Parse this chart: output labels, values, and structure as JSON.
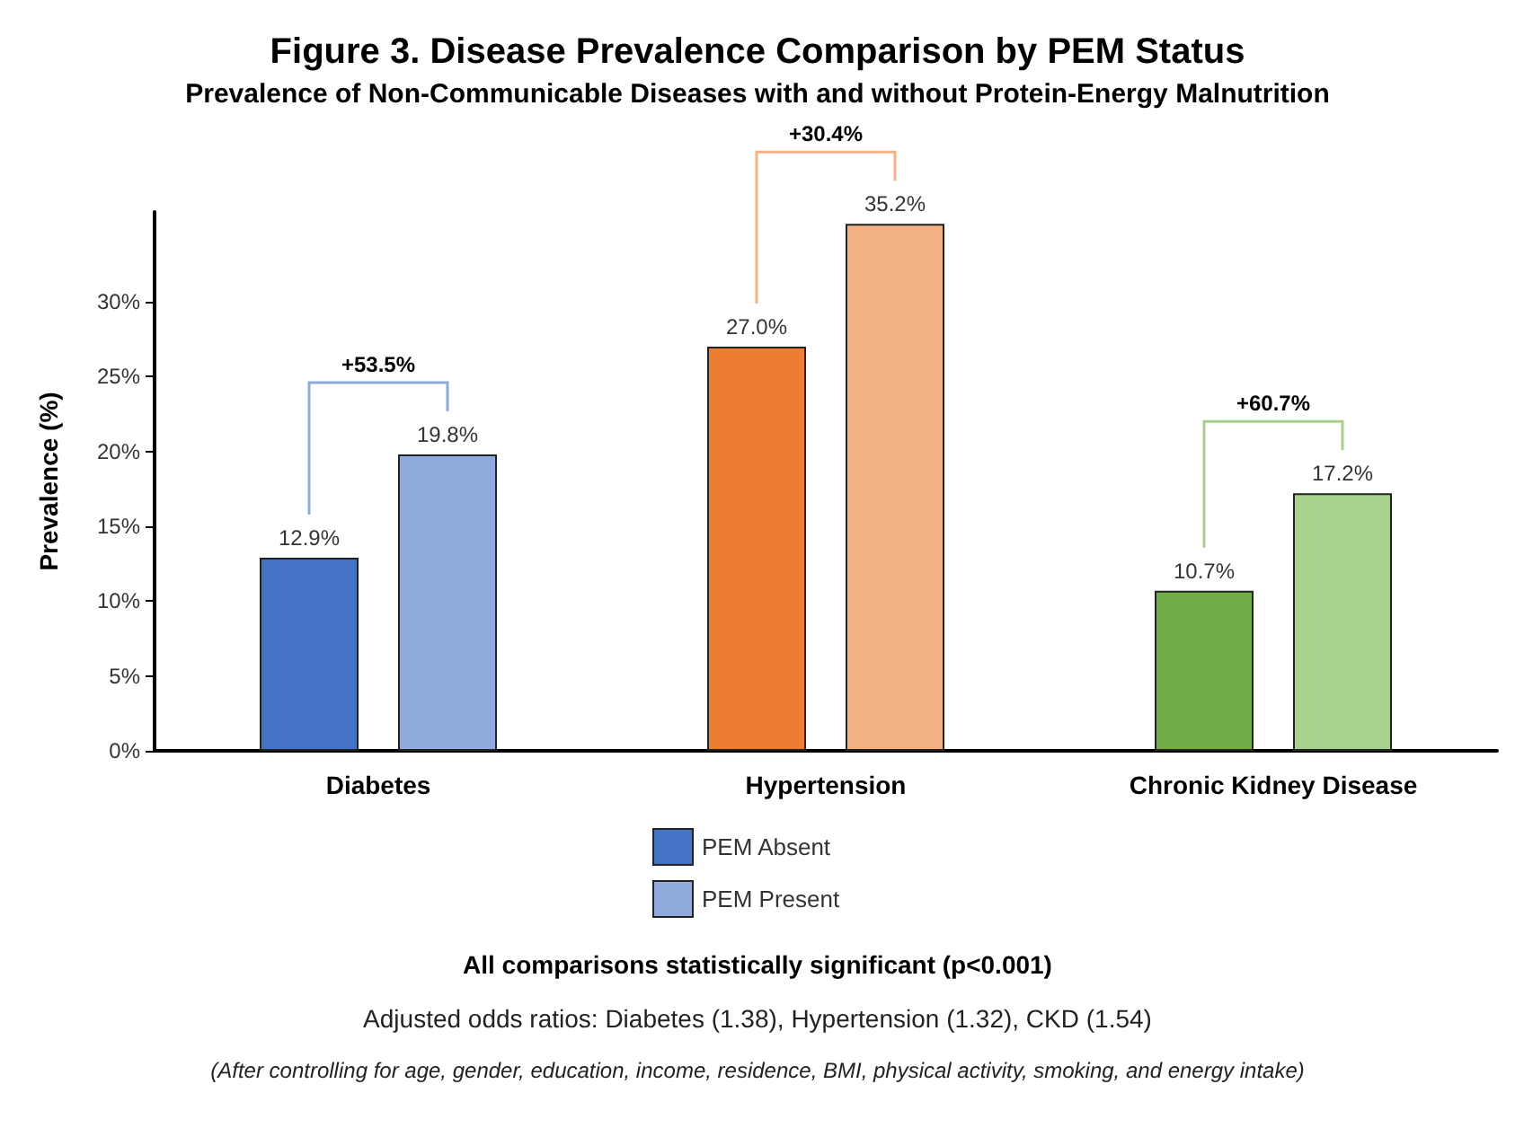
{
  "chart_data": {
    "type": "bar",
    "title": "Figure 3. Disease Prevalence Comparison by PEM Status",
    "subtitle": "Prevalence of Non-Communicable Diseases with and without Protein-Energy Malnutrition",
    "ylabel": "Prevalence (%)",
    "categories": [
      "Diabetes",
      "Hypertension",
      "Chronic Kidney Disease"
    ],
    "series": [
      {
        "name": "PEM Absent",
        "color": "#4472c4",
        "colors": [
          "#4472c4",
          "#ed7d31",
          "#70ad47"
        ],
        "values": [
          12.9,
          27.0,
          10.7
        ],
        "value_labels": [
          "12.9%",
          "27.0%",
          "10.7%"
        ]
      },
      {
        "name": "PEM Present",
        "color": "#8faadc",
        "colors": [
          "#8faadc",
          "#f4b183",
          "#a9d18e"
        ],
        "values": [
          19.8,
          35.2,
          17.2
        ],
        "value_labels": [
          "19.8%",
          "35.2%",
          "17.2%"
        ]
      }
    ],
    "ylim": [
      0,
      36
    ],
    "yticks": [
      {
        "value": 0,
        "label": "0%"
      },
      {
        "value": 5,
        "label": "5%"
      },
      {
        "value": 10,
        "label": "10%"
      },
      {
        "value": 15,
        "label": "15%"
      },
      {
        "value": 20,
        "label": "20%"
      },
      {
        "value": 25,
        "label": "25%"
      },
      {
        "value": 30,
        "label": "30%"
      }
    ],
    "grid": false,
    "legend": "bottom",
    "annotations": [
      "+53.5%",
      "+30.4%",
      "+60.7%",
      "All comparisons statistically significant (p<0.001)",
      "Adjusted odds ratios: Diabetes (1.38), Hypertension (1.32), CKD (1.54)",
      "(After controlling for age, gender, education, income, residence, BMI, physical activity, smoking, and energy intake)"
    ]
  }
}
